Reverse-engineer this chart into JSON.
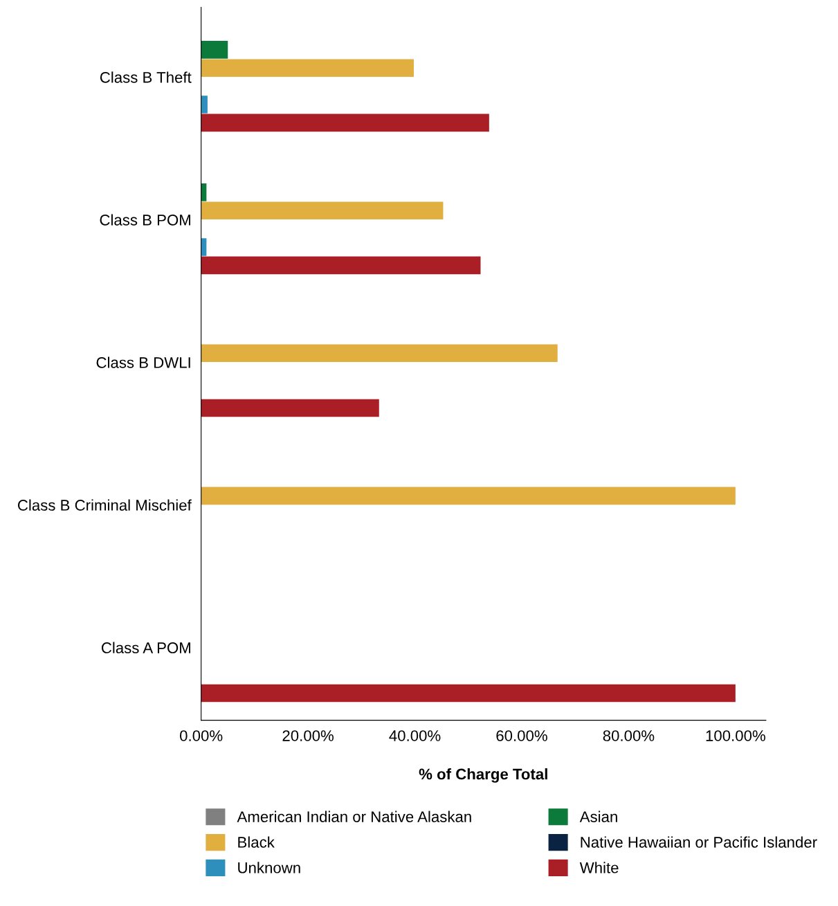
{
  "chart_data": {
    "type": "bar",
    "orientation": "horizontal",
    "xlabel": "% of Charge Total",
    "categories": [
      "Class B Theft",
      "Class B POM",
      "Class B DWLI",
      "Class B Criminal Mischief",
      "Class A POM"
    ],
    "series": [
      {
        "name": "American Indian or Native Alaskan",
        "color": "#808080",
        "values": [
          0,
          0,
          0,
          0,
          0
        ]
      },
      {
        "name": "Asian",
        "color": "#0b7a3a",
        "values": [
          5.0,
          1.0,
          0,
          0,
          0
        ]
      },
      {
        "name": "Black",
        "color": "#e1ae40",
        "values": [
          39.8,
          45.3,
          66.7,
          100,
          0
        ]
      },
      {
        "name": "Native Hawaiian or Pacific Islander",
        "color": "#0b2343",
        "values": [
          0,
          0,
          0,
          0,
          0
        ]
      },
      {
        "name": "Unknown",
        "color": "#2e8fbd",
        "values": [
          1.2,
          1.0,
          0,
          0,
          0
        ]
      },
      {
        "name": "White",
        "color": "#a91f25",
        "values": [
          53.9,
          52.3,
          33.3,
          0,
          100
        ]
      }
    ],
    "xlim": [
      0,
      105.7
    ],
    "xticks": [
      {
        "value": 0,
        "label": "0.00%"
      },
      {
        "value": 20,
        "label": "20.00%"
      },
      {
        "value": 40,
        "label": "40.00%"
      },
      {
        "value": 60,
        "label": "60.00%"
      },
      {
        "value": 80,
        "label": "80.00%"
      },
      {
        "value": 100,
        "label": "100.00%"
      }
    ],
    "grid": false,
    "legend": "bottom"
  }
}
